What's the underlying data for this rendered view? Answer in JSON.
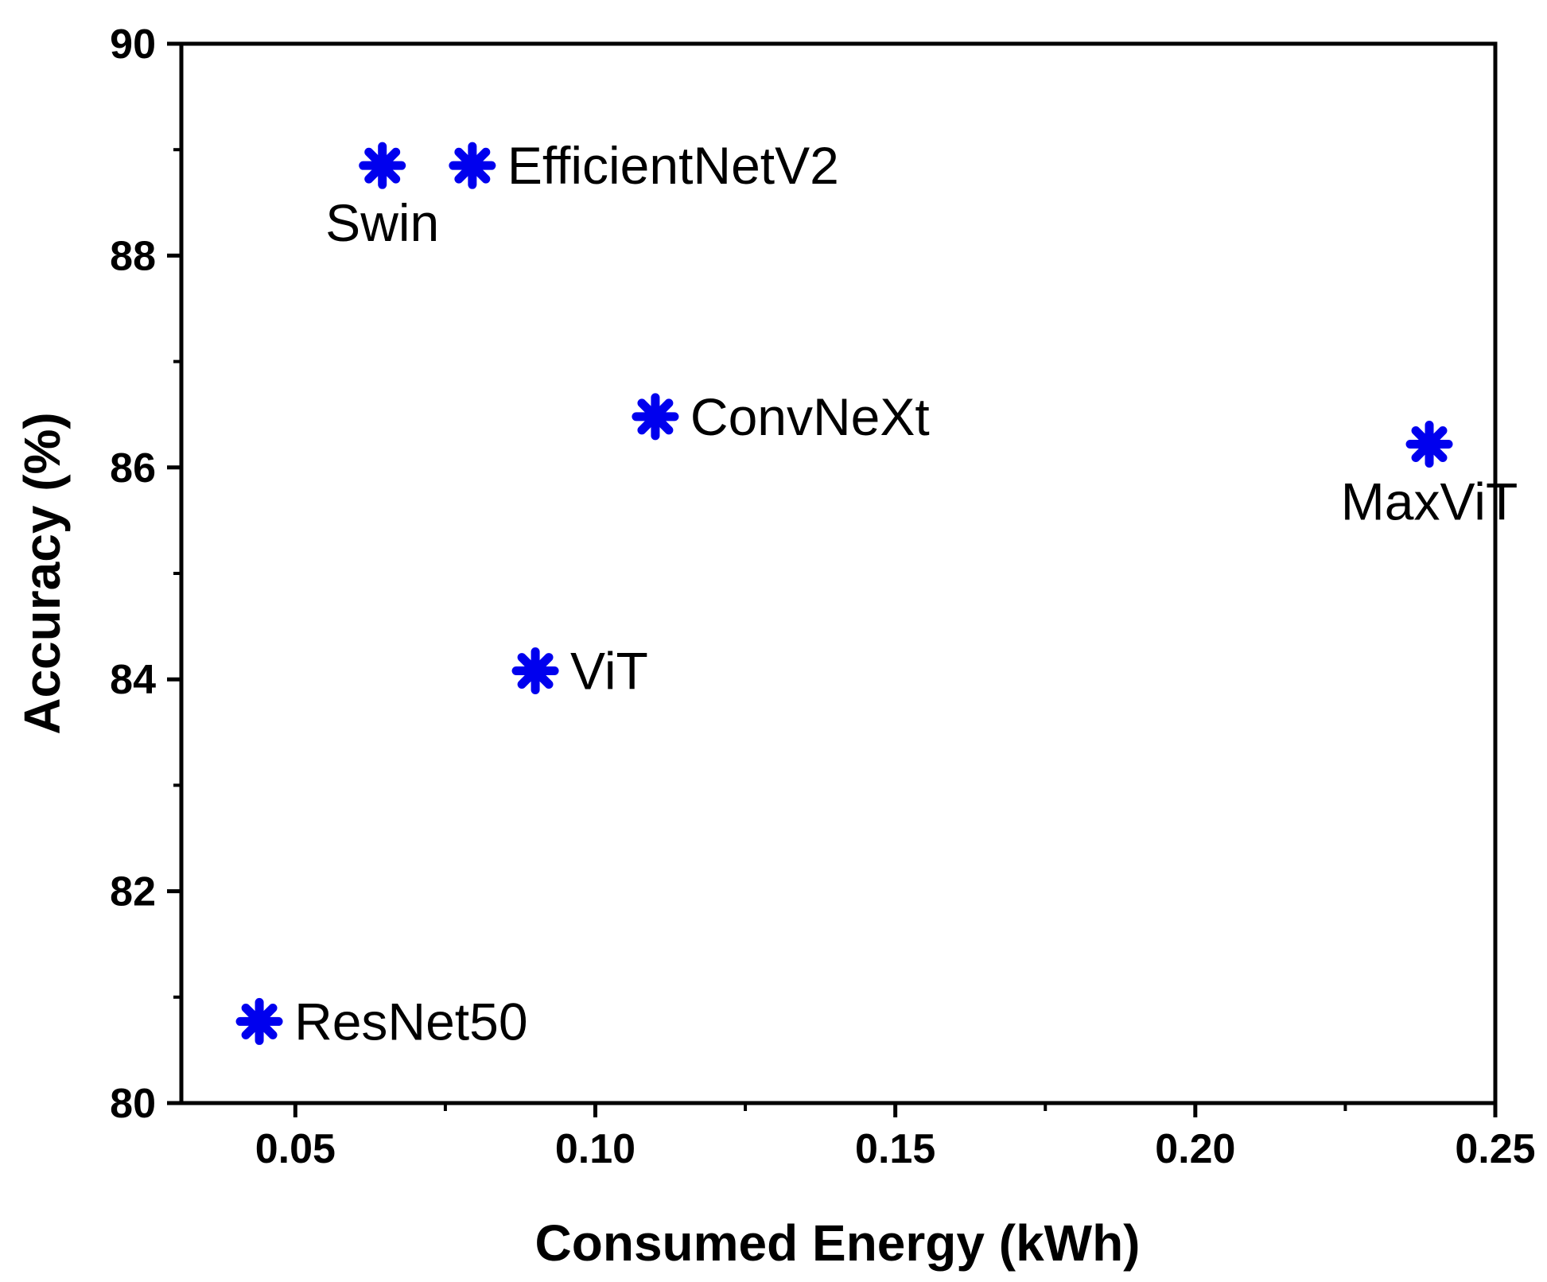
{
  "chart_data": {
    "type": "scatter",
    "title": "",
    "xlabel": "Consumed Energy (kWh)",
    "ylabel": "Accuracy (%)",
    "xlim": [
      0.031,
      0.25
    ],
    "ylim": [
      80,
      90
    ],
    "xticks": [
      {
        "value": 0.05,
        "label": "0.05"
      },
      {
        "value": 0.1,
        "label": "0.10"
      },
      {
        "value": 0.15,
        "label": "0.15"
      },
      {
        "value": 0.2,
        "label": "0.20"
      },
      {
        "value": 0.25,
        "label": "0.25"
      }
    ],
    "xminor": [
      0.075,
      0.125,
      0.175,
      0.225
    ],
    "yticks": [
      {
        "value": 80,
        "label": "80"
      },
      {
        "value": 82,
        "label": "82"
      },
      {
        "value": 84,
        "label": "84"
      },
      {
        "value": 86,
        "label": "86"
      },
      {
        "value": 88,
        "label": "88"
      },
      {
        "value": 90,
        "label": "90"
      }
    ],
    "yminor": [
      81,
      83,
      85,
      87,
      89
    ],
    "grid": false,
    "marker": "asterisk",
    "marker_color": "#0000ee",
    "points": [
      {
        "name": "Swin",
        "x": 0.0645,
        "y": 88.85,
        "label_pos": "below"
      },
      {
        "name": "EfficientNetV2",
        "x": 0.0795,
        "y": 88.85,
        "label_pos": "right"
      },
      {
        "name": "ConvNeXt",
        "x": 0.11,
        "y": 86.48,
        "label_pos": "right"
      },
      {
        "name": "ViT",
        "x": 0.09,
        "y": 84.08,
        "label_pos": "right"
      },
      {
        "name": "MaxViT",
        "x": 0.239,
        "y": 86.22,
        "label_pos": "below"
      },
      {
        "name": "ResNet50",
        "x": 0.044,
        "y": 80.77,
        "label_pos": "right"
      }
    ]
  }
}
